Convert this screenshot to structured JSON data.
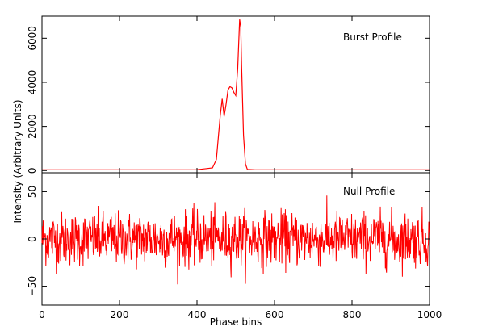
{
  "chart_data": {
    "type": "line",
    "xlabel": "Phase bins",
    "ylabel": "Intensity (Arbitrary Units)",
    "xlim": [
      0,
      1000
    ],
    "x_ticks": [
      0,
      200,
      400,
      600,
      800,
      1000
    ],
    "series_color": "#ff0000",
    "panels": [
      {
        "name": "burst",
        "label": "Burst Profile",
        "ylim": [
          -100,
          7000
        ],
        "y_ticks": [
          0,
          2000,
          4000,
          6000
        ],
        "x": [
          0,
          100,
          200,
          300,
          400,
          440,
          450,
          455,
          460,
          465,
          470,
          475,
          480,
          485,
          490,
          495,
          500,
          505,
          510,
          513,
          515,
          520,
          525,
          530,
          550,
          600,
          700,
          800,
          900,
          1000
        ],
        "values": [
          30,
          30,
          30,
          30,
          40,
          120,
          500,
          1500,
          2500,
          3250,
          2450,
          3000,
          3650,
          3800,
          3750,
          3550,
          3400,
          4600,
          6850,
          6500,
          4800,
          1600,
          300,
          50,
          30,
          30,
          30,
          30,
          30,
          30
        ]
      },
      {
        "name": "null",
        "label": "Null Profile",
        "ylim": [
          -70,
          70
        ],
        "y_ticks": [
          -50,
          0,
          50
        ],
        "noise_std": 14,
        "noise_range": [
          -48,
          54
        ],
        "n_points": 1000
      }
    ]
  }
}
